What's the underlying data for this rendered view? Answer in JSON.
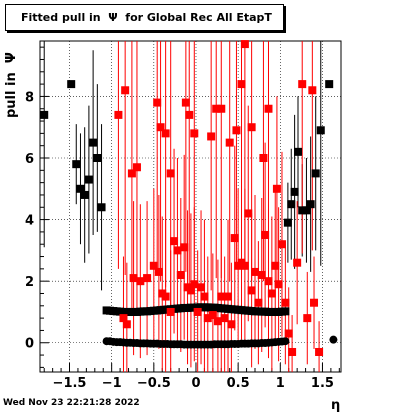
{
  "chart_data": {
    "type": "scatter",
    "title": "Fitted pull in  Ψ  for Global Rec All EtapT",
    "xlabel": "η",
    "ylabel": "pull in  Ψ",
    "xlim": [
      -1.85,
      1.72
    ],
    "ylim": [
      -0.95,
      9.8
    ],
    "x_ticks": [
      -1.5,
      -1,
      -0.5,
      0,
      0.5,
      1,
      1.5
    ],
    "x_tick_labels": [
      "−1.5",
      "−1",
      "−0.5",
      "0",
      "0.5",
      "1",
      "1.5"
    ],
    "y_ticks": [
      0,
      2,
      4,
      6,
      8
    ],
    "y_tick_labels": [
      "0",
      "2",
      "4",
      "6",
      "8"
    ],
    "grid": true,
    "timestamp": "Wed Nov 23 22:21:28 2022",
    "colors": {
      "black": "#000000",
      "red": "#ff0000"
    },
    "series": [
      {
        "color": "black",
        "marker": "square",
        "points": [
          [
            -1.8,
            7.4,
            4.3
          ],
          [
            -1.48,
            8.4,
            0.0
          ],
          [
            -1.42,
            5.8,
            1.3
          ],
          [
            -1.37,
            5.0,
            1.8
          ],
          [
            -1.32,
            4.8,
            2.2
          ],
          [
            -1.27,
            5.3,
            2.4
          ],
          [
            -1.22,
            6.5,
            3.0
          ],
          [
            -1.17,
            6.0,
            2.4
          ],
          [
            -1.12,
            4.4,
            2.7
          ],
          [
            1.09,
            3.9,
            1.3
          ],
          [
            1.13,
            4.5,
            1.8
          ],
          [
            1.17,
            4.9,
            2.5
          ],
          [
            1.21,
            6.2,
            1.8
          ],
          [
            1.26,
            4.3,
            1.5
          ],
          [
            1.31,
            4.3,
            1.7
          ],
          [
            1.36,
            4.5,
            2.2
          ],
          [
            1.42,
            5.5,
            2.5
          ],
          [
            1.48,
            6.9,
            4.4
          ],
          [
            1.58,
            8.4,
            0.0
          ]
        ]
      },
      {
        "color": "black",
        "marker": "circle",
        "points": [
          [
            -1.06,
            0.05
          ],
          [
            -1.02,
            0.05
          ],
          [
            -0.98,
            0.03
          ],
          [
            -0.94,
            0.02
          ],
          [
            -0.9,
            0.02
          ],
          [
            -0.86,
            0.01
          ],
          [
            -0.82,
            0.0
          ],
          [
            -0.78,
            0.0
          ],
          [
            -0.74,
            -0.01
          ],
          [
            -0.7,
            -0.01
          ],
          [
            -0.66,
            -0.02
          ],
          [
            -0.62,
            -0.02
          ],
          [
            -0.58,
            -0.02
          ],
          [
            -0.54,
            -0.03
          ],
          [
            -0.5,
            -0.03
          ],
          [
            -0.46,
            -0.03
          ],
          [
            -0.42,
            -0.04
          ],
          [
            -0.38,
            -0.04
          ],
          [
            -0.34,
            -0.04
          ],
          [
            -0.3,
            -0.05
          ],
          [
            -0.26,
            -0.05
          ],
          [
            -0.22,
            -0.05
          ],
          [
            -0.18,
            -0.05
          ],
          [
            -0.14,
            -0.06
          ],
          [
            -0.1,
            -0.06
          ],
          [
            -0.06,
            -0.06
          ],
          [
            -0.02,
            -0.06
          ],
          [
            0.02,
            -0.06
          ],
          [
            0.06,
            -0.06
          ],
          [
            0.1,
            -0.06
          ],
          [
            0.14,
            -0.06
          ],
          [
            0.18,
            -0.06
          ],
          [
            0.22,
            -0.05
          ],
          [
            0.26,
            -0.05
          ],
          [
            0.3,
            -0.05
          ],
          [
            0.34,
            -0.05
          ],
          [
            0.38,
            -0.05
          ],
          [
            0.42,
            -0.04
          ],
          [
            0.46,
            -0.04
          ],
          [
            0.5,
            -0.04
          ],
          [
            0.54,
            -0.03
          ],
          [
            0.58,
            -0.03
          ],
          [
            0.62,
            -0.03
          ],
          [
            0.66,
            -0.02
          ],
          [
            0.7,
            -0.02
          ],
          [
            0.74,
            -0.02
          ],
          [
            0.78,
            -0.01
          ],
          [
            0.82,
            -0.01
          ],
          [
            0.86,
            0.0
          ],
          [
            0.9,
            0.01
          ],
          [
            0.94,
            0.02
          ],
          [
            0.98,
            0.03
          ],
          [
            1.02,
            0.04
          ],
          [
            1.06,
            0.05
          ],
          [
            1.63,
            0.1
          ]
        ]
      },
      {
        "color": "black",
        "marker": "square",
        "points": [
          [
            -1.06,
            1.05
          ],
          [
            -1.02,
            1.04
          ],
          [
            -0.98,
            1.03
          ],
          [
            -0.94,
            1.02
          ],
          [
            -0.9,
            1.01
          ],
          [
            -0.86,
            1.0
          ],
          [
            -0.82,
            1.0
          ],
          [
            -0.78,
            1.0
          ],
          [
            -0.74,
            1.0
          ],
          [
            -0.7,
            1.0
          ],
          [
            -0.66,
            1.01
          ],
          [
            -0.62,
            1.02
          ],
          [
            -0.58,
            1.02
          ],
          [
            -0.54,
            1.03
          ],
          [
            -0.5,
            1.04
          ],
          [
            -0.46,
            1.05
          ],
          [
            -0.42,
            1.06
          ],
          [
            -0.38,
            1.07
          ],
          [
            -0.34,
            1.08
          ],
          [
            -0.3,
            1.09
          ],
          [
            -0.26,
            1.1
          ],
          [
            -0.22,
            1.11
          ],
          [
            -0.18,
            1.12
          ],
          [
            -0.14,
            1.13
          ],
          [
            -0.1,
            1.13
          ],
          [
            -0.06,
            1.14
          ],
          [
            -0.02,
            1.14
          ],
          [
            0.02,
            1.15
          ],
          [
            0.06,
            1.15
          ],
          [
            0.1,
            1.15
          ],
          [
            0.14,
            1.15
          ],
          [
            0.18,
            1.14
          ],
          [
            0.22,
            1.14
          ],
          [
            0.26,
            1.13
          ],
          [
            0.3,
            1.12
          ],
          [
            0.34,
            1.11
          ],
          [
            0.38,
            1.1
          ],
          [
            0.42,
            1.09
          ],
          [
            0.46,
            1.08
          ],
          [
            0.5,
            1.07
          ],
          [
            0.54,
            1.06
          ],
          [
            0.58,
            1.05
          ],
          [
            0.62,
            1.04
          ],
          [
            0.66,
            1.03
          ],
          [
            0.7,
            1.02
          ],
          [
            0.74,
            1.02
          ],
          [
            0.78,
            1.01
          ],
          [
            0.82,
            1.01
          ],
          [
            0.86,
            1.0
          ],
          [
            0.9,
            1.0
          ],
          [
            0.94,
            1.0
          ],
          [
            0.98,
            1.0
          ],
          [
            1.02,
            1.01
          ],
          [
            1.06,
            1.02
          ]
        ]
      },
      {
        "color": "red",
        "marker": "square",
        "points": [
          [
            -0.92,
            7.4,
            5.0
          ],
          [
            -0.84,
            8.2,
            6.0
          ],
          [
            -0.76,
            5.5,
            4.5
          ],
          [
            -0.7,
            5.7,
            4.8
          ],
          [
            -0.46,
            7.8,
            5.5
          ],
          [
            -0.42,
            7.0,
            5.0
          ],
          [
            -0.36,
            6.8,
            5.0
          ],
          [
            -0.3,
            5.5,
            4.5
          ],
          [
            -0.12,
            7.8,
            5.5
          ],
          [
            -0.08,
            7.4,
            5.5
          ],
          [
            -0.02,
            6.8,
            5.0
          ],
          [
            0.18,
            6.7,
            5.0
          ],
          [
            0.24,
            7.6,
            5.5
          ],
          [
            0.3,
            7.6,
            5.5
          ],
          [
            0.4,
            6.5,
            4.5
          ],
          [
            0.48,
            6.9,
            4.5
          ],
          [
            0.54,
            8.4,
            6.0
          ],
          [
            0.58,
            9.7,
            7.0
          ],
          [
            0.66,
            7.0,
            5.0
          ],
          [
            0.8,
            6.0,
            4.0
          ],
          [
            0.86,
            7.6,
            5.0
          ],
          [
            0.96,
            5.0,
            3.0
          ],
          [
            1.26,
            8.4,
            5.5
          ],
          [
            1.38,
            8.2,
            5.2
          ]
        ]
      },
      {
        "color": "red",
        "marker": "square",
        "points": [
          [
            -0.86,
            0.8,
            2.0
          ],
          [
            -0.82,
            0.6,
            2.0
          ],
          [
            -0.74,
            2.1,
            2.5
          ],
          [
            -0.66,
            2.0,
            2.5
          ],
          [
            -0.58,
            2.1,
            2.5
          ],
          [
            -0.5,
            2.5,
            2.5
          ],
          [
            -0.44,
            2.3,
            2.5
          ],
          [
            -0.4,
            1.6,
            2.5
          ],
          [
            -0.36,
            1.5,
            2.5
          ],
          [
            -0.3,
            1.0,
            2.0
          ],
          [
            -0.26,
            3.3,
            3.0
          ],
          [
            -0.22,
            3.0,
            3.0
          ],
          [
            -0.18,
            2.2,
            2.5
          ],
          [
            -0.14,
            3.1,
            3.0
          ],
          [
            -0.1,
            1.8,
            2.5
          ],
          [
            -0.06,
            1.7,
            2.5
          ],
          [
            -0.02,
            1.9,
            2.5
          ],
          [
            0.02,
            1.0,
            2.0
          ],
          [
            0.06,
            1.8,
            2.5
          ],
          [
            0.1,
            1.5,
            2.5
          ],
          [
            0.14,
            0.8,
            2.0
          ],
          [
            0.2,
            0.9,
            2.0
          ],
          [
            0.26,
            0.7,
            2.0
          ],
          [
            0.3,
            1.5,
            2.5
          ],
          [
            0.34,
            0.8,
            2.0
          ],
          [
            0.38,
            1.5,
            2.5
          ],
          [
            0.42,
            0.6,
            2.0
          ],
          [
            0.46,
            3.4,
            3.0
          ],
          [
            0.5,
            2.5,
            2.5
          ],
          [
            0.54,
            2.6,
            2.5
          ],
          [
            0.58,
            2.5,
            2.5
          ],
          [
            0.62,
            4.2,
            3.5
          ],
          [
            0.66,
            1.7,
            2.5
          ],
          [
            0.7,
            2.3,
            2.5
          ],
          [
            0.74,
            1.3,
            2.0
          ],
          [
            0.78,
            2.2,
            2.5
          ],
          [
            0.82,
            3.5,
            3.0
          ],
          [
            0.86,
            2.0,
            2.5
          ],
          [
            0.9,
            1.6,
            2.5
          ],
          [
            0.94,
            2.5,
            2.5
          ],
          [
            0.98,
            1.9,
            2.5
          ],
          [
            1.02,
            3.2,
            3.0
          ],
          [
            1.06,
            1.3,
            2.0
          ],
          [
            1.1,
            0.3,
            1.5
          ],
          [
            1.14,
            -0.3,
            1.2
          ],
          [
            1.2,
            2.6,
            2.0
          ],
          [
            1.32,
            0.8,
            1.5
          ],
          [
            1.4,
            1.3,
            1.5
          ],
          [
            1.46,
            -0.3,
            1.0
          ]
        ]
      }
    ]
  }
}
